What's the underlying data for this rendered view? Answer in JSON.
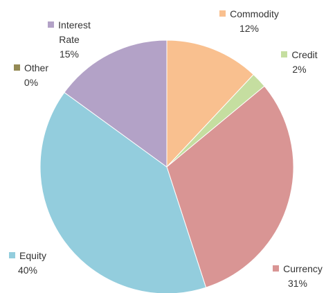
{
  "chart_data": {
    "type": "pie",
    "categories": [
      "Commodity",
      "Credit",
      "Currency",
      "Equity",
      "Interest Rate",
      "Other"
    ],
    "values": [
      12,
      2,
      31,
      40,
      15,
      0
    ],
    "value_labels": [
      "12%",
      "2%",
      "31%",
      "40%",
      "15%",
      "0%"
    ],
    "colors": [
      "#f9c08f",
      "#c5dea0",
      "#d99594",
      "#93cddd",
      "#b3a2c7",
      "#948a54"
    ]
  }
}
